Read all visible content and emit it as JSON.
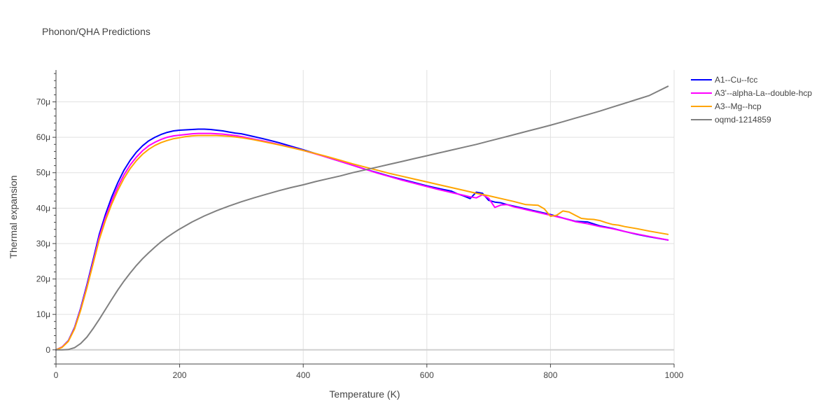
{
  "chart_data": {
    "type": "line",
    "title": "Phonon/QHA Predictions",
    "xlabel": "Temperature (K)",
    "ylabel": "Thermal expansion",
    "xlim": [
      0,
      1000
    ],
    "ylim": [
      -4,
      79
    ],
    "x_ticks": [
      0,
      200,
      400,
      600,
      800,
      1000
    ],
    "y_ticks": [
      0,
      10,
      20,
      30,
      40,
      50,
      60,
      70
    ],
    "y_tick_labels": [
      "0",
      "10μ",
      "20μ",
      "30μ",
      "40μ",
      "50μ",
      "60μ",
      "70μ"
    ],
    "y_unit": "1e-6 (μ)",
    "grid": true,
    "legend_position": "top-right, outside plot",
    "series": [
      {
        "name": "A1--Cu--fcc",
        "color": "#0000ff",
        "x": [
          0,
          10,
          20,
          30,
          40,
          50,
          60,
          70,
          80,
          90,
          100,
          110,
          120,
          130,
          140,
          150,
          160,
          170,
          180,
          190,
          200,
          210,
          220,
          230,
          240,
          250,
          260,
          270,
          280,
          290,
          300,
          320,
          340,
          360,
          380,
          400,
          420,
          440,
          460,
          480,
          500,
          520,
          540,
          560,
          580,
          600,
          620,
          640,
          650,
          660,
          670,
          680,
          690,
          700,
          710,
          720,
          730,
          740,
          760,
          780,
          800,
          820,
          840,
          860,
          880,
          900,
          920,
          940,
          960,
          990
        ],
        "values": [
          0,
          0.8,
          2.6,
          6.3,
          11.8,
          18.4,
          25.4,
          32.6,
          38.2,
          43.1,
          47.2,
          50.7,
          53.5,
          55.8,
          57.6,
          59.0,
          60.0,
          60.8,
          61.4,
          61.8,
          62.0,
          62.1,
          62.2,
          62.3,
          62.3,
          62.2,
          62.0,
          61.8,
          61.5,
          61.2,
          61.0,
          60.2,
          59.4,
          58.5,
          57.5,
          56.5,
          55.4,
          54.3,
          53.2,
          52.1,
          51.0,
          50.0,
          49.0,
          48.1,
          47.2,
          46.3,
          45.5,
          44.8,
          44.0,
          43.4,
          42.7,
          44.5,
          44.2,
          42.2,
          41.7,
          41.5,
          41.0,
          40.6,
          39.8,
          39.0,
          38.2,
          37.2,
          36.3,
          36.1,
          35.0,
          34.3,
          33.4,
          32.6,
          31.9,
          31.0
        ]
      },
      {
        "name": "A3'--alpha-La--double-hcp",
        "color": "#ff00ff",
        "x": [
          0,
          10,
          20,
          30,
          40,
          50,
          60,
          70,
          80,
          90,
          100,
          110,
          120,
          130,
          140,
          150,
          160,
          170,
          180,
          190,
          200,
          210,
          220,
          230,
          240,
          250,
          260,
          270,
          280,
          290,
          300,
          320,
          340,
          360,
          380,
          400,
          420,
          440,
          460,
          480,
          500,
          520,
          540,
          560,
          580,
          600,
          620,
          640,
          660,
          670,
          680,
          690,
          700,
          710,
          720,
          730,
          740,
          760,
          780,
          800,
          820,
          840,
          860,
          880,
          900,
          920,
          940,
          960,
          990
        ],
        "values": [
          0,
          0.8,
          2.5,
          6.1,
          11.5,
          17.9,
          24.8,
          31.8,
          37.3,
          42.0,
          46.0,
          49.4,
          52.2,
          54.4,
          56.2,
          57.6,
          58.6,
          59.4,
          60.0,
          60.4,
          60.6,
          60.8,
          61.0,
          61.1,
          61.1,
          61.1,
          61.0,
          60.9,
          60.7,
          60.5,
          60.2,
          59.5,
          58.8,
          58.0,
          57.2,
          56.3,
          55.3,
          54.3,
          53.2,
          52.1,
          51.0,
          49.9,
          48.9,
          47.9,
          47.0,
          46.1,
          45.2,
          44.4,
          43.6,
          43.2,
          42.9,
          43.8,
          42.8,
          40.2,
          40.9,
          41.0,
          40.4,
          39.6,
          38.8,
          38.0,
          37.2,
          36.2,
          35.6,
          34.8,
          34.2,
          33.4,
          32.7,
          32.0,
          31.0
        ]
      },
      {
        "name": "A3--Mg--hcp",
        "color": "#ffa500",
        "x": [
          0,
          10,
          20,
          30,
          40,
          50,
          60,
          70,
          80,
          90,
          100,
          110,
          120,
          130,
          140,
          150,
          160,
          170,
          180,
          190,
          200,
          210,
          220,
          230,
          240,
          250,
          260,
          270,
          280,
          290,
          300,
          320,
          340,
          360,
          380,
          400,
          420,
          440,
          460,
          480,
          500,
          520,
          540,
          560,
          580,
          600,
          620,
          640,
          660,
          680,
          700,
          720,
          740,
          760,
          770,
          780,
          790,
          800,
          810,
          820,
          830,
          840,
          850,
          860,
          870,
          880,
          890,
          900,
          910,
          920,
          940,
          960,
          990
        ],
        "values": [
          0,
          0.7,
          2.4,
          5.9,
          11.2,
          17.5,
          24.3,
          31.1,
          36.5,
          41.1,
          45.0,
          48.4,
          51.2,
          53.4,
          55.2,
          56.6,
          57.7,
          58.5,
          59.1,
          59.6,
          59.9,
          60.2,
          60.4,
          60.5,
          60.5,
          60.5,
          60.5,
          60.4,
          60.3,
          60.1,
          59.9,
          59.3,
          58.6,
          57.9,
          57.1,
          56.3,
          55.4,
          54.5,
          53.5,
          52.5,
          51.6,
          50.7,
          49.8,
          49.0,
          48.2,
          47.4,
          46.6,
          45.8,
          45.0,
          44.2,
          43.5,
          42.7,
          41.9,
          41.0,
          40.9,
          40.8,
          39.8,
          37.7,
          38.0,
          39.2,
          38.9,
          38.0,
          37.1,
          36.9,
          36.8,
          36.5,
          35.9,
          35.4,
          35.2,
          34.8,
          34.2,
          33.5,
          32.6
        ]
      },
      {
        "name": "oqmd-1214859",
        "color": "#808080",
        "x": [
          0,
          10,
          20,
          30,
          40,
          50,
          60,
          70,
          80,
          90,
          100,
          110,
          120,
          130,
          140,
          150,
          160,
          170,
          180,
          190,
          200,
          220,
          240,
          260,
          280,
          300,
          320,
          340,
          360,
          380,
          400,
          420,
          440,
          460,
          480,
          500,
          520,
          540,
          560,
          580,
          600,
          620,
          640,
          660,
          680,
          700,
          720,
          740,
          760,
          780,
          800,
          820,
          840,
          860,
          880,
          900,
          920,
          940,
          960,
          990
        ],
        "values": [
          0,
          0.0,
          0.1,
          0.6,
          1.8,
          3.6,
          6.0,
          8.6,
          11.4,
          14.2,
          16.9,
          19.4,
          21.7,
          23.8,
          25.7,
          27.4,
          29.0,
          30.5,
          31.8,
          33.0,
          34.1,
          36.1,
          37.8,
          39.3,
          40.6,
          41.8,
          42.9,
          43.9,
          44.9,
          45.8,
          46.6,
          47.5,
          48.3,
          49.1,
          50.0,
          50.8,
          51.6,
          52.4,
          53.2,
          54.0,
          54.8,
          55.6,
          56.4,
          57.2,
          58.0,
          58.9,
          59.8,
          60.7,
          61.6,
          62.5,
          63.4,
          64.4,
          65.4,
          66.4,
          67.4,
          68.5,
          69.6,
          70.7,
          71.8,
          74.4
        ]
      }
    ]
  }
}
